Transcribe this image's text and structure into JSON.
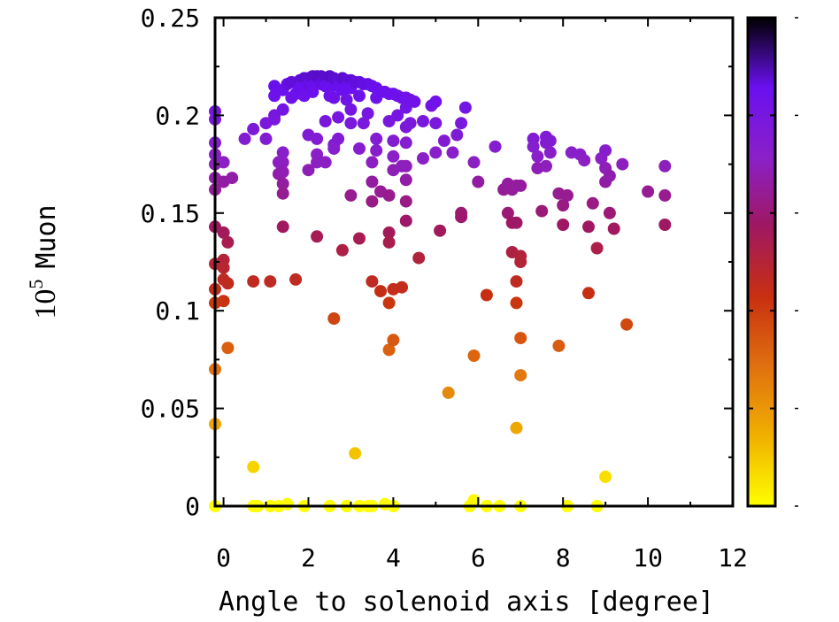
{
  "chart_data": {
    "type": "scatter",
    "title": "",
    "xlabel": "Angle to solenoid axis [degree]",
    "ylabel": "10⁵ Muon",
    "ylabel_base": "10",
    "ylabel_exp": "5",
    "ylabel_word": "Muon",
    "xlim": [
      -0.2,
      12
    ],
    "ylim": [
      0,
      0.25
    ],
    "x_ticks": [
      {
        "value": 0,
        "label": "0"
      },
      {
        "value": 2,
        "label": "2"
      },
      {
        "value": 4,
        "label": "4"
      },
      {
        "value": 6,
        "label": "6"
      },
      {
        "value": 8,
        "label": "8"
      },
      {
        "value": 10,
        "label": "10"
      },
      {
        "value": 12,
        "label": "12"
      }
    ],
    "y_ticks": [
      {
        "value": 0,
        "label": "0"
      },
      {
        "value": 0.05,
        "label": "0.05"
      },
      {
        "value": 0.1,
        "label": "0.1"
      },
      {
        "value": 0.15,
        "label": "0.15"
      },
      {
        "value": 0.2,
        "label": "0.2"
      },
      {
        "value": 0.25,
        "label": "0.25"
      }
    ],
    "colorbar": {
      "colors": [
        "#ffff00",
        "#f0b000",
        "#e07010",
        "#c83010",
        "#a01860",
        "#8a20c8",
        "#6a10f0",
        "#000000"
      ],
      "range": [
        0,
        0.25
      ]
    },
    "grid": false,
    "points": [
      [
        -0.2,
        0.202
      ],
      [
        -0.2,
        0.198
      ],
      [
        -0.2,
        0.186
      ],
      [
        -0.2,
        0.18
      ],
      [
        -0.2,
        0.175
      ],
      [
        -0.2,
        0.168
      ],
      [
        -0.2,
        0.162
      ],
      [
        -0.2,
        0.143
      ],
      [
        -0.2,
        0.124
      ],
      [
        -0.2,
        0.111
      ],
      [
        -0.2,
        0.104
      ],
      [
        -0.2,
        0.07
      ],
      [
        -0.2,
        0.042
      ],
      [
        -0.2,
        0.0
      ],
      [
        0.0,
        0.176
      ],
      [
        0.0,
        0.166
      ],
      [
        0.0,
        0.14
      ],
      [
        0.0,
        0.126
      ],
      [
        0.0,
        0.122
      ],
      [
        0.0,
        0.116
      ],
      [
        0.0,
        0.105
      ],
      [
        0.1,
        0.135
      ],
      [
        0.1,
        0.114
      ],
      [
        0.1,
        0.081
      ],
      [
        0.2,
        0.168
      ],
      [
        0.5,
        0.188
      ],
      [
        0.7,
        0.193
      ],
      [
        0.7,
        0.115
      ],
      [
        0.7,
        0.02
      ],
      [
        0.7,
        0.0
      ],
      [
        0.8,
        0.0
      ],
      [
        1.0,
        0.196
      ],
      [
        1.0,
        0.188
      ],
      [
        1.1,
        0.115
      ],
      [
        1.1,
        0.0
      ],
      [
        1.2,
        0.215
      ],
      [
        1.2,
        0.21
      ],
      [
        1.2,
        0.2
      ],
      [
        1.2,
        0.198
      ],
      [
        1.3,
        0.176
      ],
      [
        1.3,
        0.17
      ],
      [
        1.3,
        0.0
      ],
      [
        1.4,
        0.203
      ],
      [
        1.4,
        0.213
      ],
      [
        1.4,
        0.181
      ],
      [
        1.4,
        0.176
      ],
      [
        1.4,
        0.171
      ],
      [
        1.4,
        0.165
      ],
      [
        1.4,
        0.16
      ],
      [
        1.4,
        0.143
      ],
      [
        1.5,
        0.216
      ],
      [
        1.5,
        0.001
      ],
      [
        1.6,
        0.217
      ],
      [
        1.6,
        0.209
      ],
      [
        1.7,
        0.211
      ],
      [
        1.7,
        0.116
      ],
      [
        1.8,
        0.218
      ],
      [
        1.8,
        0.214
      ],
      [
        1.9,
        0.219
      ],
      [
        1.9,
        0.214
      ],
      [
        1.9,
        0.21
      ],
      [
        1.9,
        0.0
      ],
      [
        2.0,
        0.219
      ],
      [
        2.0,
        0.216
      ],
      [
        2.0,
        0.19
      ],
      [
        2.0,
        0.172
      ],
      [
        2.1,
        0.22
      ],
      [
        2.1,
        0.215
      ],
      [
        2.1,
        0.212
      ],
      [
        2.2,
        0.22
      ],
      [
        2.2,
        0.188
      ],
      [
        2.2,
        0.18
      ],
      [
        2.2,
        0.176
      ],
      [
        2.2,
        0.138
      ],
      [
        2.3,
        0.22
      ],
      [
        2.3,
        0.216
      ],
      [
        2.4,
        0.219
      ],
      [
        2.4,
        0.215
      ],
      [
        2.4,
        0.197
      ],
      [
        2.4,
        0.176
      ],
      [
        2.5,
        0.22
      ],
      [
        2.5,
        0.214
      ],
      [
        2.5,
        0.21
      ],
      [
        2.5,
        0.0
      ],
      [
        2.6,
        0.219
      ],
      [
        2.6,
        0.209
      ],
      [
        2.6,
        0.185
      ],
      [
        2.6,
        0.183
      ],
      [
        2.6,
        0.096
      ],
      [
        2.7,
        0.218
      ],
      [
        2.7,
        0.215
      ],
      [
        2.7,
        0.199
      ],
      [
        2.7,
        0.188
      ],
      [
        2.8,
        0.219
      ],
      [
        2.8,
        0.213
      ],
      [
        2.8,
        0.131
      ],
      [
        2.9,
        0.218
      ],
      [
        2.9,
        0.214
      ],
      [
        2.9,
        0.208
      ],
      [
        2.9,
        0.0
      ],
      [
        3.0,
        0.218
      ],
      [
        3.0,
        0.214
      ],
      [
        3.0,
        0.203
      ],
      [
        3.0,
        0.196
      ],
      [
        3.0,
        0.159
      ],
      [
        3.1,
        0.217
      ],
      [
        3.1,
        0.027
      ],
      [
        3.2,
        0.217
      ],
      [
        3.2,
        0.21
      ],
      [
        3.2,
        0.183
      ],
      [
        3.2,
        0.137
      ],
      [
        3.2,
        0.0
      ],
      [
        3.3,
        0.216
      ],
      [
        3.3,
        0.196
      ],
      [
        3.4,
        0.216
      ],
      [
        3.4,
        0.201
      ],
      [
        3.4,
        0.0
      ],
      [
        3.5,
        0.215
      ],
      [
        3.5,
        0.176
      ],
      [
        3.5,
        0.166
      ],
      [
        3.5,
        0.156
      ],
      [
        3.5,
        0.115
      ],
      [
        3.5,
        0.0
      ],
      [
        3.6,
        0.214
      ],
      [
        3.6,
        0.209
      ],
      [
        3.6,
        0.188
      ],
      [
        3.6,
        0.182
      ],
      [
        3.7,
        0.212
      ],
      [
        3.7,
        0.161
      ],
      [
        3.7,
        0.11
      ],
      [
        3.8,
        0.212
      ],
      [
        3.8,
        0.001
      ],
      [
        3.9,
        0.211
      ],
      [
        3.9,
        0.197
      ],
      [
        3.9,
        0.159
      ],
      [
        3.9,
        0.14
      ],
      [
        3.9,
        0.135
      ],
      [
        3.9,
        0.104
      ],
      [
        3.9,
        0.08
      ],
      [
        4.0,
        0.211
      ],
      [
        4.0,
        0.187
      ],
      [
        4.0,
        0.179
      ],
      [
        4.0,
        0.172
      ],
      [
        4.0,
        0.111
      ],
      [
        4.0,
        0.085
      ],
      [
        4.0,
        0.0
      ],
      [
        4.1,
        0.21
      ],
      [
        4.1,
        0.2
      ],
      [
        4.2,
        0.209
      ],
      [
        4.2,
        0.174
      ],
      [
        4.2,
        0.112
      ],
      [
        4.3,
        0.209
      ],
      [
        4.3,
        0.204
      ],
      [
        4.3,
        0.194
      ],
      [
        4.3,
        0.186
      ],
      [
        4.3,
        0.174
      ],
      [
        4.3,
        0.167
      ],
      [
        4.3,
        0.156
      ],
      [
        4.3,
        0.146
      ],
      [
        4.4,
        0.208
      ],
      [
        4.4,
        0.196
      ],
      [
        4.5,
        0.207
      ],
      [
        4.6,
        0.127
      ],
      [
        4.7,
        0.197
      ],
      [
        4.7,
        0.178
      ],
      [
        4.9,
        0.205
      ],
      [
        5.0,
        0.207
      ],
      [
        5.0,
        0.196
      ],
      [
        5.0,
        0.181
      ],
      [
        5.1,
        0.141
      ],
      [
        5.2,
        0.187
      ],
      [
        5.3,
        0.058
      ],
      [
        5.4,
        0.181
      ],
      [
        5.5,
        0.19
      ],
      [
        5.6,
        0.196
      ],
      [
        5.6,
        0.15
      ],
      [
        5.6,
        0.148
      ],
      [
        5.7,
        0.204
      ],
      [
        5.8,
        0.0
      ],
      [
        5.9,
        0.176
      ],
      [
        5.9,
        0.077
      ],
      [
        5.9,
        0.003
      ],
      [
        6.0,
        0.166
      ],
      [
        6.2,
        0.108
      ],
      [
        6.2,
        0.0
      ],
      [
        6.4,
        0.184
      ],
      [
        6.5,
        0.0
      ],
      [
        6.6,
        0.162
      ],
      [
        6.7,
        0.165
      ],
      [
        6.7,
        0.15
      ],
      [
        6.8,
        0.162
      ],
      [
        6.8,
        0.145
      ],
      [
        6.8,
        0.13
      ],
      [
        6.9,
        0.164
      ],
      [
        6.9,
        0.145
      ],
      [
        6.9,
        0.115
      ],
      [
        6.9,
        0.104
      ],
      [
        6.9,
        0.04
      ],
      [
        7.0,
        0.164
      ],
      [
        7.0,
        0.128
      ],
      [
        7.0,
        0.125
      ],
      [
        7.0,
        0.086
      ],
      [
        7.0,
        0.067
      ],
      [
        7.0,
        0.0
      ],
      [
        7.3,
        0.188
      ],
      [
        7.3,
        0.184
      ],
      [
        7.4,
        0.179
      ],
      [
        7.4,
        0.173
      ],
      [
        7.5,
        0.151
      ],
      [
        7.6,
        0.174
      ],
      [
        7.6,
        0.186
      ],
      [
        7.6,
        0.189
      ],
      [
        7.7,
        0.187
      ],
      [
        7.7,
        0.181
      ],
      [
        7.9,
        0.16
      ],
      [
        7.9,
        0.082
      ],
      [
        8.0,
        0.154
      ],
      [
        8.0,
        0.144
      ],
      [
        8.1,
        0.159
      ],
      [
        8.1,
        0.0
      ],
      [
        8.2,
        0.181
      ],
      [
        8.4,
        0.18
      ],
      [
        8.5,
        0.177
      ],
      [
        8.6,
        0.143
      ],
      [
        8.6,
        0.109
      ],
      [
        8.7,
        0.155
      ],
      [
        8.8,
        0.132
      ],
      [
        8.8,
        0.0
      ],
      [
        8.9,
        0.178
      ],
      [
        9.0,
        0.182
      ],
      [
        9.0,
        0.173
      ],
      [
        9.0,
        0.166
      ],
      [
        9.0,
        0.015
      ],
      [
        9.1,
        0.169
      ],
      [
        9.1,
        0.15
      ],
      [
        9.2,
        0.142
      ],
      [
        9.4,
        0.175
      ],
      [
        9.5,
        0.093
      ],
      [
        10.0,
        0.161
      ],
      [
        10.4,
        0.174
      ],
      [
        10.4,
        0.159
      ],
      [
        10.4,
        0.144
      ]
    ]
  }
}
